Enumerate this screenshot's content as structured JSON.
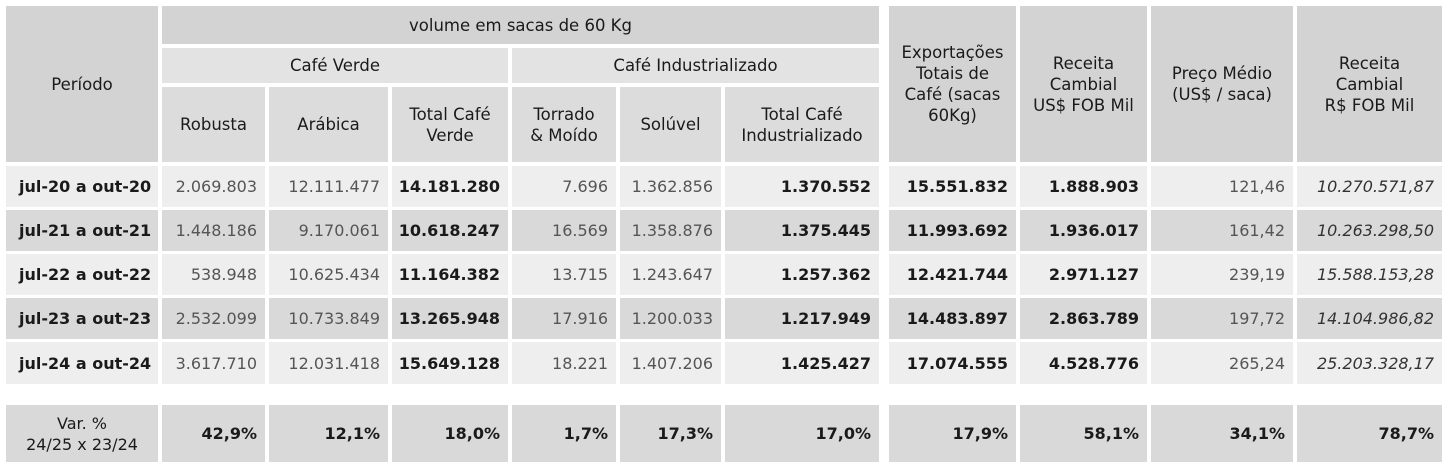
{
  "headers": {
    "periodo": "Período",
    "volume": "volume em sacas de 60 Kg",
    "cafe_verde": "Café Verde",
    "cafe_industrializado": "Café Industrializado",
    "robusta": "Robusta",
    "arabica": "Arábica",
    "total_cafe_verde": "Total Café\nVerde",
    "torrado_moido": "Torrado\n& Moído",
    "soluvel": "Solúvel",
    "total_cafe_industrializado": "Total Café\nIndustrializado",
    "exportacoes_totais": "Exportações\nTotais de\nCafé (sacas\n60Kg)",
    "receita_usd": "Receita\nCambial\nUS$ FOB Mil",
    "preco_medio": "Preço Médio\n(US$ / saca)",
    "receita_brl": "Receita\nCambial\nR$ FOB Mil"
  },
  "rows": [
    {
      "periodo": "jul-20 a out-20",
      "robusta": "2.069.803",
      "arabica": "12.111.477",
      "total_verde": "14.181.280",
      "torrado": "7.696",
      "soluvel": "1.362.856",
      "total_ind": "1.370.552",
      "export_total": "15.551.832",
      "receita_usd": "1.888.903",
      "preco_medio": "121,46",
      "receita_brl": "10.270.571,87"
    },
    {
      "periodo": "jul-21 a out-21",
      "robusta": "1.448.186",
      "arabica": "9.170.061",
      "total_verde": "10.618.247",
      "torrado": "16.569",
      "soluvel": "1.358.876",
      "total_ind": "1.375.445",
      "export_total": "11.993.692",
      "receita_usd": "1.936.017",
      "preco_medio": "161,42",
      "receita_brl": "10.263.298,50"
    },
    {
      "periodo": "jul-22 a out-22",
      "robusta": "538.948",
      "arabica": "10.625.434",
      "total_verde": "11.164.382",
      "torrado": "13.715",
      "soluvel": "1.243.647",
      "total_ind": "1.257.362",
      "export_total": "12.421.744",
      "receita_usd": "2.971.127",
      "preco_medio": "239,19",
      "receita_brl": "15.588.153,28"
    },
    {
      "periodo": "jul-23 a out-23",
      "robusta": "2.532.099",
      "arabica": "10.733.849",
      "total_verde": "13.265.948",
      "torrado": "17.916",
      "soluvel": "1.200.033",
      "total_ind": "1.217.949",
      "export_total": "14.483.897",
      "receita_usd": "2.863.789",
      "preco_medio": "197,72",
      "receita_brl": "14.104.986,82"
    },
    {
      "periodo": "jul-24 a out-24",
      "robusta": "3.617.710",
      "arabica": "12.031.418",
      "total_verde": "15.649.128",
      "torrado": "18.221",
      "soluvel": "1.407.206",
      "total_ind": "1.425.427",
      "export_total": "17.074.555",
      "receita_usd": "4.528.776",
      "preco_medio": "265,24",
      "receita_brl": "25.203.328,17"
    }
  ],
  "variation": {
    "label": "Var. %\n24/25 x 23/24",
    "robusta": "42,9%",
    "arabica": "12,1%",
    "total_verde": "18,0%",
    "torrado": "1,7%",
    "soluvel": "17,3%",
    "total_ind": "17,0%",
    "export_total": "17,9%",
    "receita_usd": "58,1%",
    "preco_medio": "34,1%",
    "receita_brl": "78,7%"
  }
}
